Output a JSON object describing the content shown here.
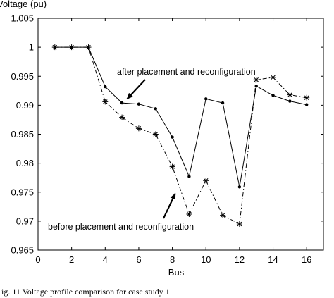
{
  "chart_data": {
    "type": "line",
    "title": "",
    "xlabel": "Bus",
    "ylabel": "Voltage (pu)",
    "xlim": [
      0,
      17
    ],
    "ylim": [
      0.965,
      1.005
    ],
    "xticks": [
      0,
      2,
      4,
      6,
      8,
      10,
      12,
      14,
      16
    ],
    "yticks": [
      0.965,
      0.97,
      0.975,
      0.98,
      0.985,
      0.99,
      0.995,
      1,
      1.005
    ],
    "ytick_labels": [
      "0.965",
      "0.97",
      "0.975",
      "0.98",
      "0.985",
      "0.99",
      "0.995",
      "1",
      "1.005"
    ],
    "grid": false,
    "x": [
      1,
      2,
      3,
      4,
      5,
      6,
      7,
      8,
      9,
      10,
      11,
      12,
      13,
      14,
      15,
      16
    ],
    "series": [
      {
        "style": "solid",
        "marker": "dot",
        "values": [
          1.0,
          1.0,
          1.0,
          0.9932,
          0.9904,
          0.9902,
          0.9894,
          0.9845,
          0.9777,
          0.9911,
          0.9904,
          0.9759,
          0.9933,
          0.9917,
          0.9907,
          0.9901
        ]
      },
      {
        "style": "dashdot",
        "marker": "star",
        "values": [
          1.0,
          1.0,
          1.0,
          0.9906,
          0.9879,
          0.986,
          0.985,
          0.9794,
          0.9712,
          0.977,
          0.971,
          0.9695,
          0.9944,
          0.9948,
          0.9918,
          0.9913
        ]
      }
    ],
    "annotations": [
      {
        "text": "after placement and reconfiguration",
        "arrow_to": [
          5.1,
          0.9905
        ]
      },
      {
        "text": "before placement and reconfiguration",
        "arrow_to": [
          8.3,
          0.9756
        ]
      }
    ]
  },
  "caption": "ig. 11  Voltage profile comparison for case study 1"
}
